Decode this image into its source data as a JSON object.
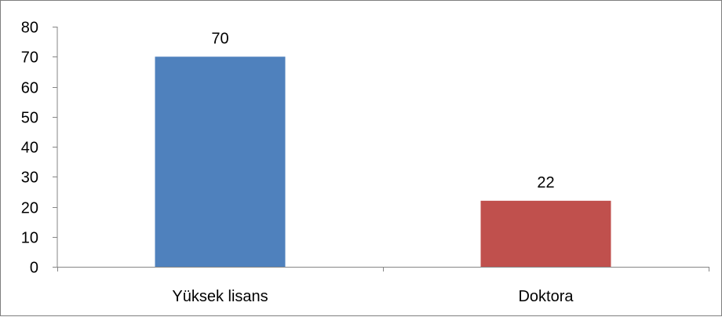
{
  "chart_data": {
    "type": "bar",
    "title": "",
    "xlabel": "",
    "ylabel": "",
    "categories": [
      "Yüksek lisans",
      "Doktora"
    ],
    "values": [
      70,
      22
    ],
    "data_labels": [
      "70",
      "22"
    ],
    "colors": [
      "#4f81bd",
      "#c0504d"
    ],
    "ylim": [
      0,
      80
    ],
    "y_ticks": [
      "0",
      "10",
      "20",
      "30",
      "40",
      "50",
      "60",
      "70",
      "80"
    ],
    "grid": false,
    "legend": "none",
    "axis_color": "#868686"
  }
}
